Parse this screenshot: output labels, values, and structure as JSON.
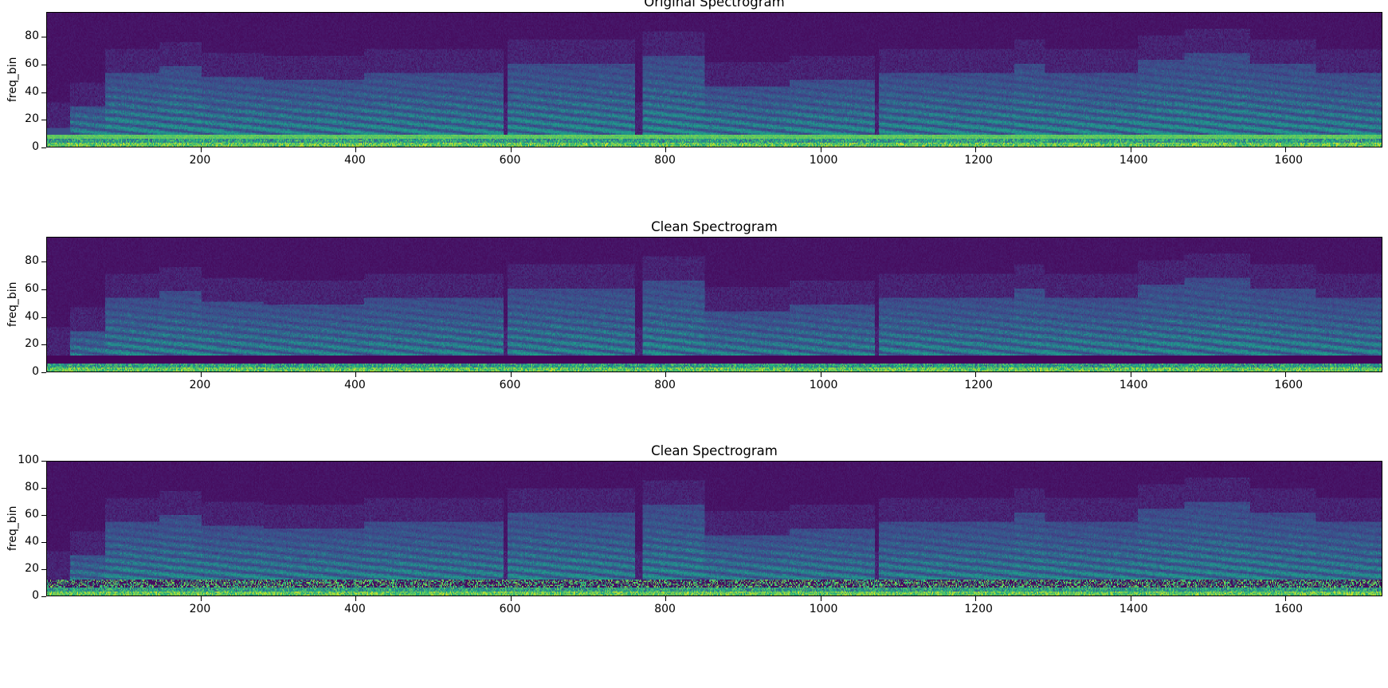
{
  "chart_data": [
    {
      "type": "heatmap",
      "title": "Original Spectrogram",
      "xlabel": "",
      "ylabel": "freq_bin",
      "xlim": [
        1,
        1725
      ],
      "ylim": [
        0,
        98
      ],
      "xticks": [
        200,
        400,
        600,
        800,
        1000,
        1200,
        1400,
        1600
      ],
      "yticks": [
        0,
        20,
        40,
        60,
        80
      ],
      "colormap": "viridis",
      "low_band": "present",
      "grid": false
    },
    {
      "type": "heatmap",
      "title": "Clean Spectrogram",
      "xlabel": "",
      "ylabel": "freq_bin",
      "xlim": [
        1,
        1725
      ],
      "ylim": [
        0,
        98
      ],
      "xticks": [
        200,
        400,
        600,
        800,
        1000,
        1200,
        1400,
        1600
      ],
      "yticks": [
        0,
        20,
        40,
        60,
        80
      ],
      "colormap": "viridis",
      "low_band": "removed",
      "grid": false
    },
    {
      "type": "heatmap",
      "title": "Clean Spectrogram",
      "xlabel": "",
      "ylabel": "freq_bin",
      "xlim": [
        1,
        1725
      ],
      "ylim": [
        0,
        100
      ],
      "xticks": [
        200,
        400,
        600,
        800,
        1000,
        1200,
        1400,
        1600
      ],
      "yticks": [
        0,
        20,
        40,
        60,
        80,
        100
      ],
      "colormap": "viridis",
      "low_band": "noisy",
      "grid": false
    }
  ],
  "colors": {
    "background": "#440154",
    "mid": "#21918c",
    "high": "#fde725"
  }
}
